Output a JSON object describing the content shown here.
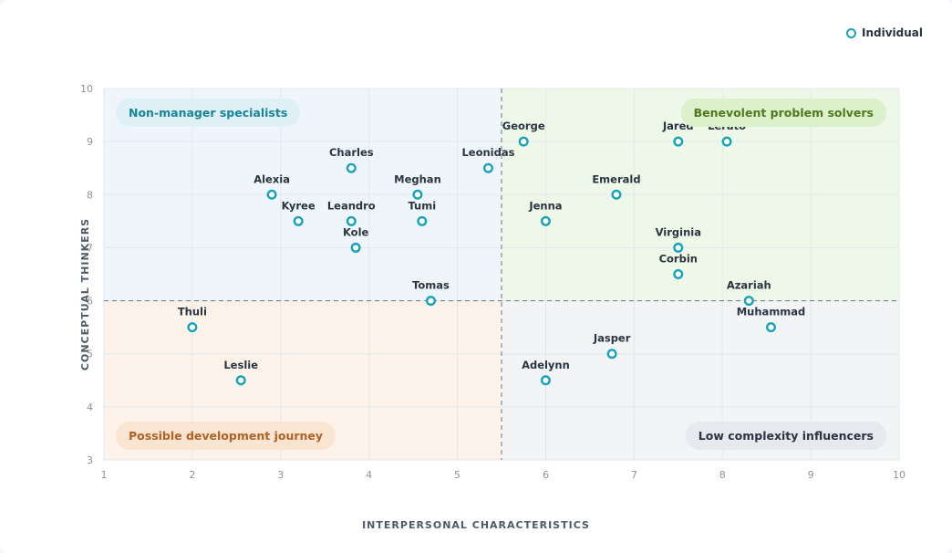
{
  "legend": {
    "label": "Individual",
    "marker_color": "#17a2b8"
  },
  "chart_data": {
    "type": "scatter",
    "xlabel": "INTERPERSONAL CHARACTERISTICS",
    "ylabel": "CONCEPTUAL THINKERS",
    "xlim": [
      1,
      10
    ],
    "ylim": [
      3,
      10
    ],
    "xticks": [
      1,
      2,
      3,
      4,
      5,
      6,
      7,
      8,
      9,
      10
    ],
    "yticks": [
      3,
      4,
      5,
      6,
      7,
      8,
      9,
      10
    ],
    "grid": true,
    "divider": {
      "x": 5.5,
      "y": 6
    },
    "quadrants": [
      {
        "name": "Non-manager specialists",
        "position": "top-left",
        "bg": "#eef6fb",
        "pill_bg": "#e0f0f7",
        "text_color": "#16859a"
      },
      {
        "name": "Benevolent problem solvers",
        "position": "top-right",
        "bg": "#eef8e8",
        "pill_bg": "#dcf0cc",
        "text_color": "#4d7a1f"
      },
      {
        "name": "Possible development journey",
        "position": "bottom-left",
        "bg": "#fdf3ea",
        "pill_bg": "#fae5d2",
        "text_color": "#b06225"
      },
      {
        "name": "Low complexity influencers",
        "position": "bottom-right",
        "bg": "#f2f4f5",
        "pill_bg": "#e6e9ee",
        "text_color": "#2b3441"
      }
    ],
    "series": [
      {
        "name": "Individual",
        "color": "#17a2b8",
        "points": [
          {
            "label": "Alexia",
            "x": 2.9,
            "y": 8.0
          },
          {
            "label": "Charles",
            "x": 3.8,
            "y": 8.5
          },
          {
            "label": "Kyree",
            "x": 3.2,
            "y": 7.5
          },
          {
            "label": "Leandro",
            "x": 3.8,
            "y": 7.5
          },
          {
            "label": "Kole",
            "x": 3.85,
            "y": 7.0
          },
          {
            "label": "Meghan",
            "x": 4.55,
            "y": 8.0
          },
          {
            "label": "Tumi",
            "x": 4.6,
            "y": 7.5
          },
          {
            "label": "Leonidas",
            "x": 5.35,
            "y": 8.5
          },
          {
            "label": "Tomas",
            "x": 4.7,
            "y": 6.0
          },
          {
            "label": "George",
            "x": 5.75,
            "y": 9.0
          },
          {
            "label": "Jenna",
            "x": 6.0,
            "y": 7.5
          },
          {
            "label": "Emerald",
            "x": 6.8,
            "y": 8.0
          },
          {
            "label": "Jared",
            "x": 7.5,
            "y": 9.0
          },
          {
            "label": "Lerato",
            "x": 8.05,
            "y": 9.0
          },
          {
            "label": "Virginia",
            "x": 7.5,
            "y": 7.0
          },
          {
            "label": "Corbin",
            "x": 7.5,
            "y": 6.5
          },
          {
            "label": "Azariah",
            "x": 8.3,
            "y": 6.0
          },
          {
            "label": "Muhammad",
            "x": 8.55,
            "y": 5.5
          },
          {
            "label": "Jasper",
            "x": 6.75,
            "y": 5.0
          },
          {
            "label": "Adelynn",
            "x": 6.0,
            "y": 4.5
          },
          {
            "label": "Thuli",
            "x": 2.0,
            "y": 5.5
          },
          {
            "label": "Leslie",
            "x": 2.55,
            "y": 4.5
          }
        ]
      }
    ]
  }
}
